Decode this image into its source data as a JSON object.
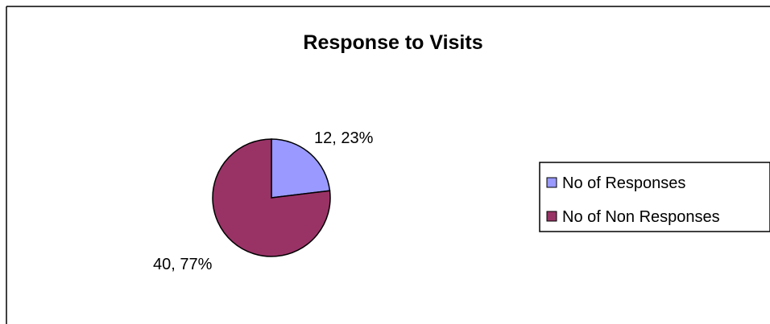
{
  "chart_data": {
    "type": "pie",
    "title": "Response to Visits",
    "categories": [
      "No of Responses",
      "No of Non Responses"
    ],
    "values": [
      12,
      40
    ],
    "data_labels": [
      "12, 23%",
      "40, 77%"
    ],
    "colors": [
      "#9999ff",
      "#993366"
    ],
    "legend_position": "right"
  }
}
